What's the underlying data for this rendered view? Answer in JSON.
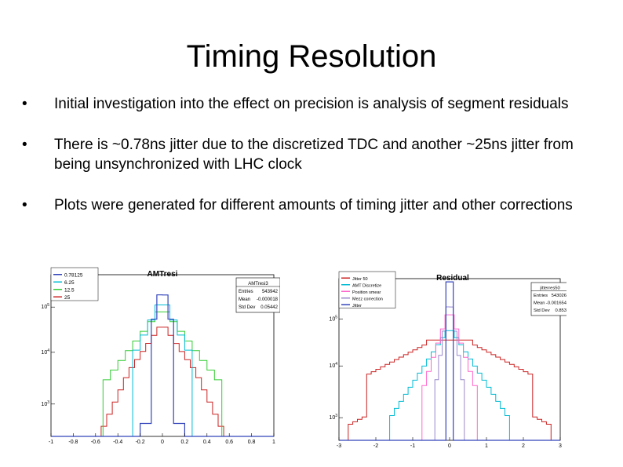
{
  "slide": {
    "title": "Timing Resolution",
    "bullets": [
      "Initial investigation into the effect on precision is analysis of segment residuals",
      "There is ~0.78ns jitter due to the discretized TDC and another ~25ns jitter from being unsynchronized with LHC clock",
      "Plots were generated for different amounts of timing jitter and other corrections"
    ],
    "bullet_symbol": "•"
  },
  "chart_data": [
    {
      "type": "histogram",
      "title": "AMTresi",
      "xlim": [
        -1,
        1
      ],
      "x_ticks": [
        "-1",
        "-0.8",
        "-0.6",
        "-0.4",
        "-0.2",
        "0",
        "0.2",
        "0.4",
        "0.6",
        "0.8",
        "1"
      ],
      "y_scale": "log",
      "y_ticks": [
        "10^5",
        "10^4",
        "10^3"
      ],
      "legend": {
        "placement": "top-left",
        "entries": [
          {
            "label": "0.78125",
            "color": "#3344bb"
          },
          {
            "label": "6.25",
            "color": "#00bcd4"
          },
          {
            "label": "12.5",
            "color": "#33cc33"
          },
          {
            "label": "25",
            "color": "#cc2222"
          }
        ]
      },
      "stats": {
        "name": "AMTresi3",
        "rows": [
          {
            "label": "Entries",
            "value": "543942"
          },
          {
            "label": "Mean",
            "value": "-0.000018"
          },
          {
            "label": "Std Dev",
            "value": "0.05442"
          }
        ]
      }
    },
    {
      "type": "histogram",
      "title": "Residual",
      "xlim": [
        -3,
        3
      ],
      "x_ticks": [
        "-3",
        "-2",
        "-1",
        "0",
        "1",
        "2",
        "3"
      ],
      "y_scale": "log",
      "y_ticks": [
        "10^5",
        "10^4",
        "10^3"
      ],
      "legend": {
        "placement": "top-left",
        "entries": [
          {
            "label": "Jitter 50",
            "color": "#cc2222"
          },
          {
            "label": "AMT Discretize",
            "color": "#00bcd4"
          },
          {
            "label": "Position smear",
            "color": "#ff66cc"
          },
          {
            "label": "Mezz correction",
            "color": "#9988cc"
          },
          {
            "label": "Jitter",
            "color": "#3344bb"
          }
        ]
      },
      "stats": {
        "name": "jitterres50",
        "rows": [
          {
            "label": "Entries",
            "value": "543026"
          },
          {
            "label": "Mean",
            "value": "-0.001654"
          },
          {
            "label": "Std Dev",
            "value": "0.853"
          }
        ]
      }
    }
  ]
}
